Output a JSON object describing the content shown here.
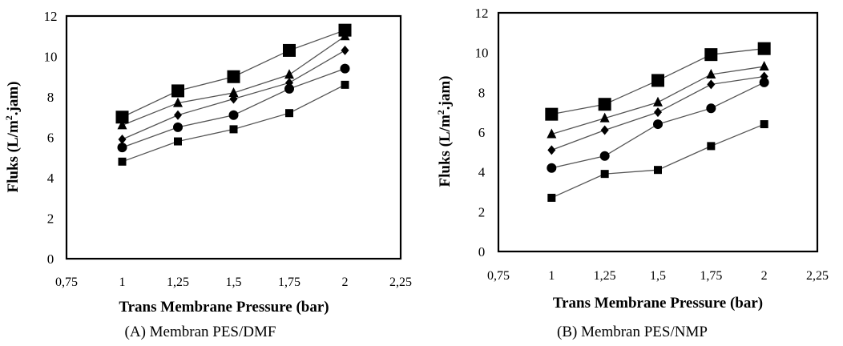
{
  "chart_data": [
    {
      "type": "line",
      "caption": "(A)  Membran PES/DMF",
      "xlabel": "Trans Membrane Pressure (bar)",
      "ylabel_main": "Fluks  (L/m",
      "ylabel_sup": "2",
      "ylabel_end": ".jam)",
      "xlim": [
        0.75,
        2.25
      ],
      "ylim": [
        0,
        12
      ],
      "x_ticks": [
        0.75,
        1,
        1.25,
        1.5,
        1.75,
        2,
        2.25
      ],
      "x_tick_labels": [
        "0,75",
        "1",
        "1,25",
        "1,5",
        "1,75",
        "2",
        "2,25"
      ],
      "y_ticks": [
        0,
        2,
        4,
        6,
        8,
        10,
        12
      ],
      "y_tick_labels": [
        "0",
        "2",
        "4",
        "6",
        "8",
        "10",
        "12"
      ],
      "x": [
        1,
        1.25,
        1.5,
        1.75,
        2
      ],
      "series": [
        {
          "marker": "square-large",
          "values": [
            7.0,
            8.3,
            9.0,
            10.3,
            11.3
          ]
        },
        {
          "marker": "triangle",
          "values": [
            6.6,
            7.7,
            8.2,
            9.1,
            11.0
          ]
        },
        {
          "marker": "diamond",
          "values": [
            5.9,
            7.1,
            7.9,
            8.7,
            10.3
          ]
        },
        {
          "marker": "circle",
          "values": [
            5.5,
            6.5,
            7.1,
            8.4,
            9.4
          ]
        },
        {
          "marker": "square-small",
          "values": [
            4.8,
            5.8,
            6.4,
            7.2,
            8.6
          ]
        }
      ]
    },
    {
      "type": "line",
      "caption": "(B) Membran PES/NMP",
      "xlabel": "Trans Membrane Pressure (bar)",
      "ylabel_main": "Fluks  (L/m",
      "ylabel_sup": "2",
      "ylabel_end": ".jam)",
      "xlim": [
        0.75,
        2.25
      ],
      "ylim": [
        0,
        12
      ],
      "x_ticks": [
        0.75,
        1,
        1.25,
        1.5,
        1.75,
        2,
        2.25
      ],
      "x_tick_labels": [
        "0,75",
        "1",
        "1,25",
        "1,5",
        "1,75",
        "2",
        "2,25"
      ],
      "y_ticks": [
        0,
        2,
        4,
        6,
        8,
        10,
        12
      ],
      "y_tick_labels": [
        "0",
        "2",
        "4",
        "6",
        "8",
        "10",
        "12"
      ],
      "x": [
        1,
        1.25,
        1.5,
        1.75,
        2
      ],
      "series": [
        {
          "marker": "square-large",
          "values": [
            6.9,
            7.4,
            8.6,
            9.9,
            10.2
          ]
        },
        {
          "marker": "triangle",
          "values": [
            5.9,
            6.7,
            7.5,
            8.9,
            9.3
          ]
        },
        {
          "marker": "diamond",
          "values": [
            5.1,
            6.1,
            7.0,
            8.4,
            8.8
          ]
        },
        {
          "marker": "circle",
          "values": [
            4.2,
            4.8,
            6.4,
            7.2,
            8.5
          ]
        },
        {
          "marker": "square-small",
          "values": [
            2.7,
            3.9,
            4.1,
            5.3,
            6.4
          ]
        }
      ]
    }
  ]
}
